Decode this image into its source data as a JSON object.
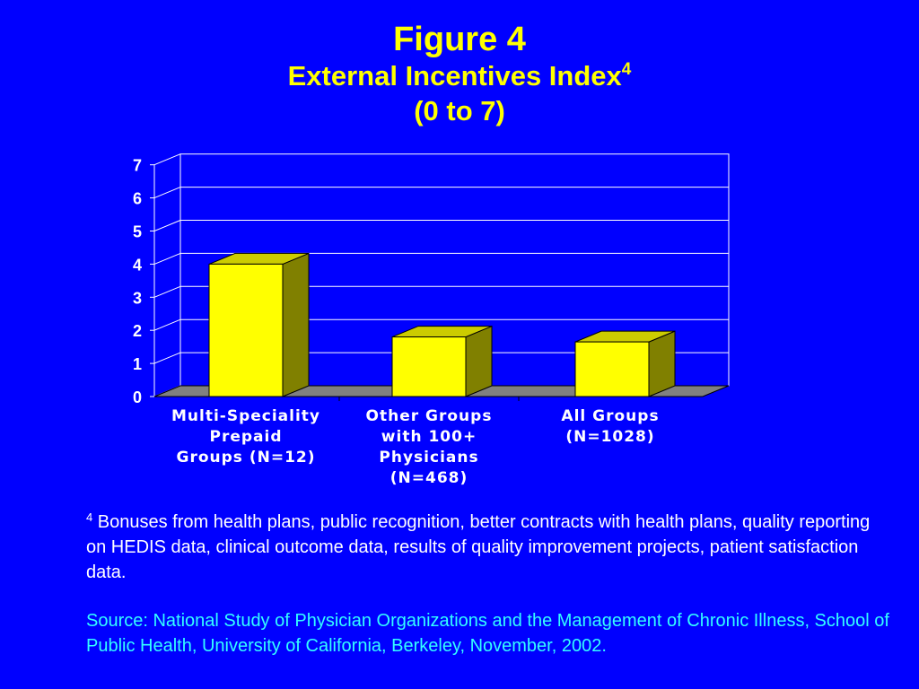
{
  "title": {
    "line1": "Figure 4",
    "line2": "External Incentives Index",
    "line2_sup": "4",
    "line3": "(0 to 7)"
  },
  "chart_data": {
    "type": "bar",
    "categories": [
      [
        "Multi-Speciality",
        "Prepaid",
        "Groups (N=12)"
      ],
      [
        "Other Groups",
        "with 100+",
        "Physicians",
        "(N=468)"
      ],
      [
        "All Groups",
        "(N=1028)"
      ]
    ],
    "values": [
      4.0,
      1.8,
      1.65
    ],
    "ylim": [
      0,
      7
    ],
    "yticks": [
      "0",
      "1",
      "2",
      "3",
      "4",
      "5",
      "6",
      "7"
    ],
    "grid": true,
    "style": "3d",
    "colors": {
      "bar_front": "#ffff00",
      "bar_top": "#cccc00",
      "bar_side": "#808000",
      "floor": "#808080",
      "plot_bg": "#0000ff",
      "grid": "#ffffff"
    }
  },
  "footnote": {
    "marker": "4",
    "text": "Bonuses from health plans, public recognition, better contracts with health plans, quality reporting on HEDIS data, clinical outcome data, results of quality improvement projects, patient satisfaction data."
  },
  "source": {
    "text": "Source:  National Study of Physician Organizations and the Management of Chronic Illness, School of Public Health, University of California, Berkeley, November, 2002."
  }
}
